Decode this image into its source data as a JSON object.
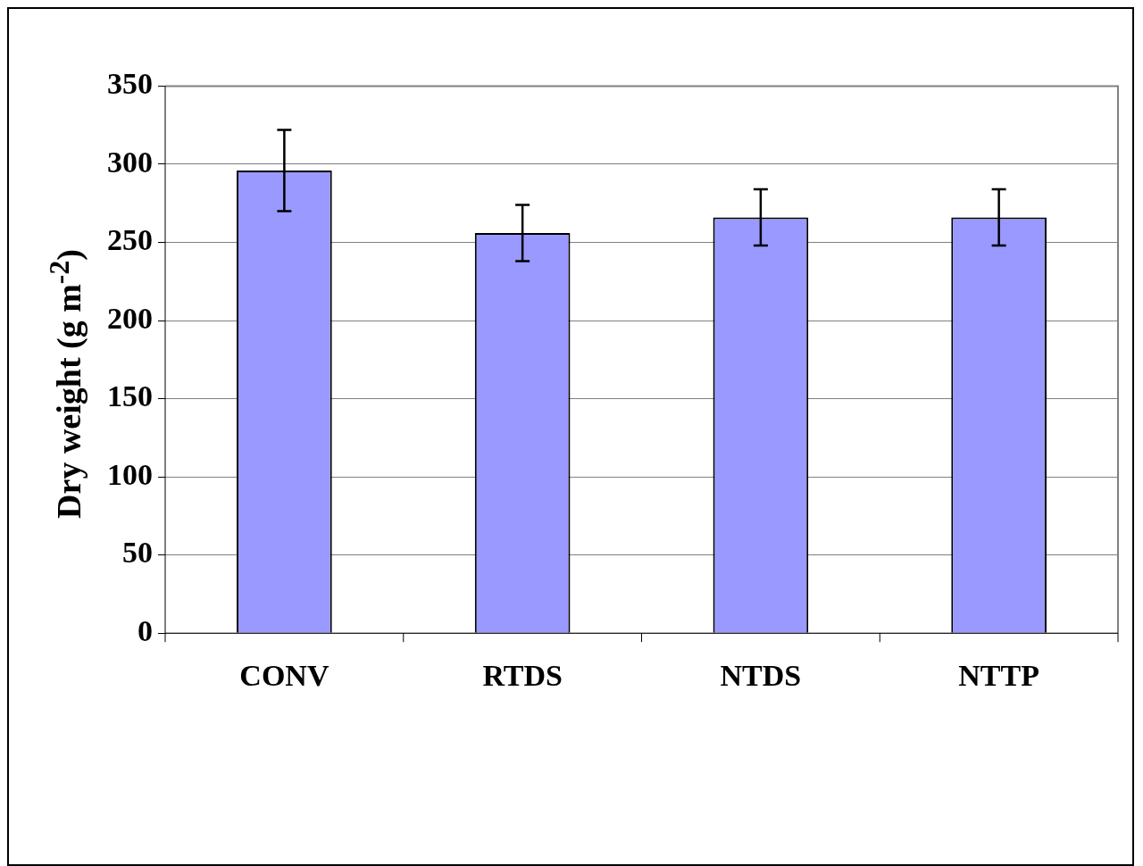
{
  "chart_data": {
    "type": "bar",
    "ylabel": "Dry weight (g m$^{-2}$)",
    "categories": [
      "CONV",
      "RTDS",
      "NTDS",
      "NTTP"
    ],
    "values": [
      296,
      256,
      266,
      266
    ],
    "errors": [
      26,
      18,
      18,
      18
    ],
    "color": "#9999ff",
    "ylim": [
      0,
      350
    ],
    "yticks": [
      0,
      50,
      100,
      150,
      200,
      250,
      300,
      350
    ],
    "grid": "y",
    "legend": false
  }
}
